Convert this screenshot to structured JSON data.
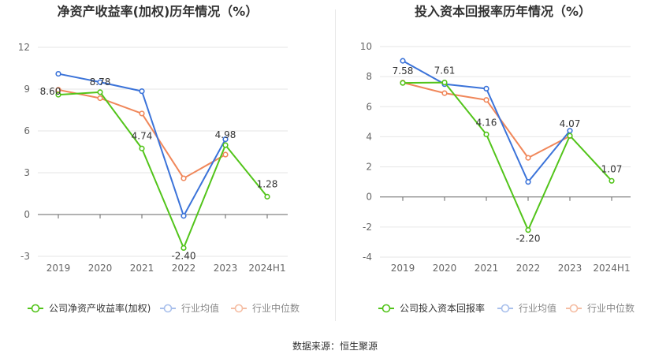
{
  "footer": {
    "source": "数据来源：恒生聚源"
  },
  "chart_data": [
    {
      "type": "line",
      "title": "净资产收益率(加权)历年情况（%）",
      "categories": [
        "2019",
        "2020",
        "2021",
        "2022",
        "2023",
        "2024H1"
      ],
      "yticks": [
        -3,
        0,
        3,
        6,
        9,
        12
      ],
      "ylim": [
        -3,
        12
      ],
      "grid": true,
      "legend_position": "bottom",
      "series": [
        {
          "name": "公司净资产收益率(加权)",
          "color": "#52c41a",
          "values": [
            8.6,
            8.78,
            4.74,
            -2.4,
            4.98,
            1.28
          ],
          "labels": [
            "8.60",
            "8.78",
            "4.74",
            "-2.40",
            "4.98",
            "1.28"
          ]
        },
        {
          "name": "行业均值",
          "color": "#3b73d9",
          "values": [
            10.1,
            9.5,
            8.85,
            -0.1,
            5.4,
            null
          ]
        },
        {
          "name": "行业中位数",
          "color": "#f0875a",
          "values": [
            8.95,
            8.35,
            7.25,
            2.6,
            4.3,
            null
          ]
        }
      ]
    },
    {
      "type": "line",
      "title": "投入资本回报率历年情况（%）",
      "categories": [
        "2019",
        "2020",
        "2021",
        "2022",
        "2023",
        "2024H1"
      ],
      "yticks": [
        -4,
        -2,
        0,
        2,
        4,
        6,
        8,
        10
      ],
      "ylim": [
        -4,
        10
      ],
      "grid": true,
      "legend_position": "bottom",
      "series": [
        {
          "name": "公司投入资本回报率",
          "color": "#52c41a",
          "values": [
            7.58,
            7.61,
            4.16,
            -2.2,
            4.07,
            1.07
          ],
          "labels": [
            "7.58",
            "7.61",
            "4.16",
            "-2.20",
            "4.07",
            "1.07"
          ]
        },
        {
          "name": "行业均值",
          "color": "#3b73d9",
          "values": [
            9.05,
            7.5,
            7.2,
            1.0,
            4.4,
            null
          ]
        },
        {
          "name": "行业中位数",
          "color": "#f0875a",
          "values": [
            7.6,
            6.9,
            6.45,
            2.6,
            4.05,
            null
          ]
        }
      ]
    }
  ]
}
